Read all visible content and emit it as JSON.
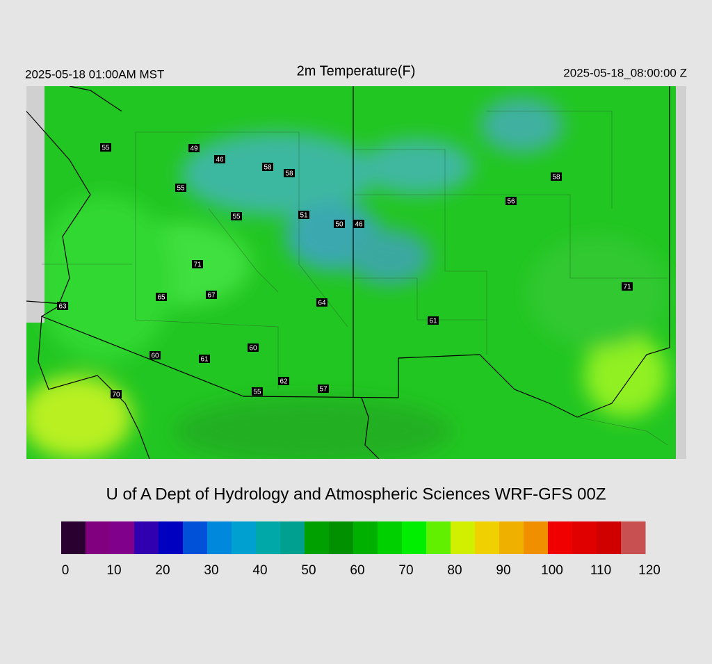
{
  "header": {
    "left": "2025-05-18 01:00AM MST",
    "title": "2m Temperature(F)",
    "right": "2025-05-18_08:00:00 Z"
  },
  "stations": [
    55,
    49,
    46,
    58,
    58,
    55,
    55,
    51,
    50,
    46,
    71,
    65,
    67,
    64,
    63,
    61,
    60,
    60,
    61,
    62,
    55,
    57,
    70,
    58,
    56,
    71
  ],
  "footer": "U of A Dept of Hydrology and Atmospheric Sciences WRF-GFS 00Z",
  "colorbar": {
    "range": [
      0,
      120
    ],
    "ticks": [
      0,
      10,
      20,
      30,
      40,
      50,
      60,
      70,
      80,
      90,
      100,
      110,
      120
    ],
    "colors": [
      "#2a0030",
      "#800080",
      "#80008c",
      "#3000b0",
      "#0000c0",
      "#0050d8",
      "#0088dd",
      "#00a0d0",
      "#00a8a8",
      "#00a090",
      "#00a000",
      "#009000",
      "#00b000",
      "#00d000",
      "#00ee00",
      "#60f000",
      "#d0f000",
      "#f0d000",
      "#f0b000",
      "#f09000",
      "#f00000",
      "#e00000",
      "#d00000",
      "#c85050"
    ]
  }
}
